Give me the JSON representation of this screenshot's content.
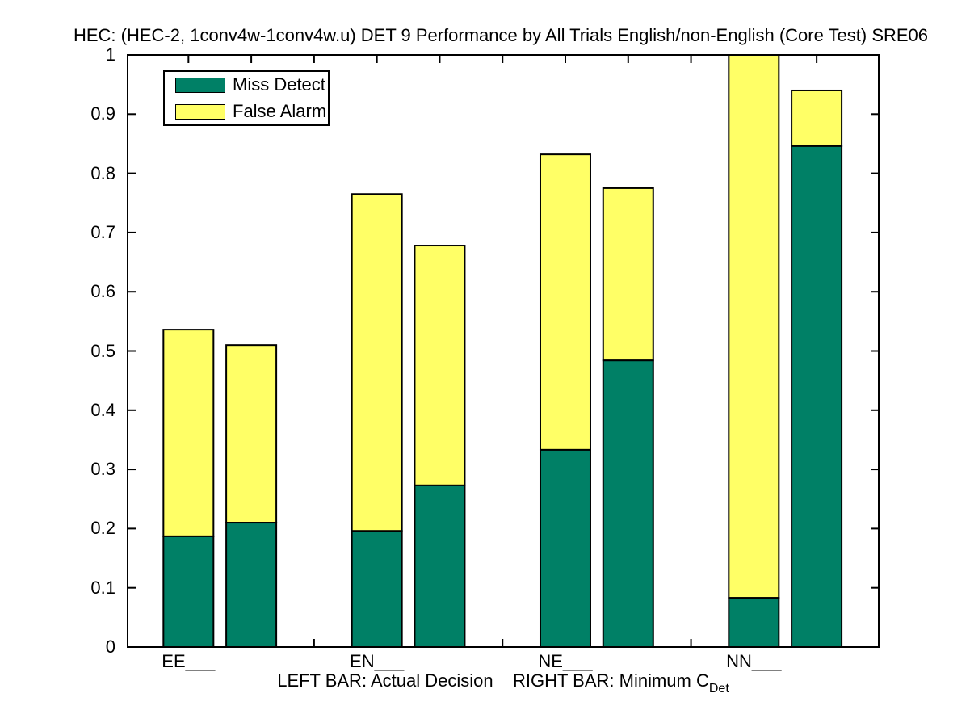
{
  "chart_data": {
    "type": "bar",
    "subtype": "stacked-pairs",
    "title": "HEC: (HEC-2, 1conv4w-1conv4w.u) DET 9 Performance by All Trials English/non-English (Core Test) SRE06",
    "xlabel_main": "LEFT BAR: Actual Decision    RIGHT BAR: Minimum C",
    "xlabel_sub": "Det",
    "ylim": [
      0,
      1
    ],
    "ytick_labels": [
      "0",
      "0.1",
      "0.2",
      "0.3",
      "0.4",
      "0.5",
      "0.6",
      "0.7",
      "0.8",
      "0.9",
      "1"
    ],
    "grid": "off",
    "legend_position": "upper-left-inside",
    "categories": [
      "EE___",
      "EN___",
      "NE___",
      "NN___"
    ],
    "legend": [
      {
        "label": "Miss Detect",
        "color": "#008066"
      },
      {
        "label": "False Alarm",
        "color": "#FFFF66"
      }
    ],
    "groups": [
      {
        "category": "EE___",
        "left": {
          "miss_detect": 0.187,
          "false_alarm": 0.349
        },
        "right": {
          "miss_detect": 0.21,
          "false_alarm": 0.3
        }
      },
      {
        "category": "EN___",
        "left": {
          "miss_detect": 0.196,
          "false_alarm": 0.569
        },
        "right": {
          "miss_detect": 0.273,
          "false_alarm": 0.405
        }
      },
      {
        "category": "NE___",
        "left": {
          "miss_detect": 0.333,
          "false_alarm": 0.499
        },
        "right": {
          "miss_detect": 0.484,
          "false_alarm": 0.291
        }
      },
      {
        "category": "NN___",
        "left": {
          "miss_detect": 0.083,
          "false_alarm": 0.917
        },
        "right": {
          "miss_detect": 0.846,
          "false_alarm": 0.094
        }
      }
    ]
  }
}
